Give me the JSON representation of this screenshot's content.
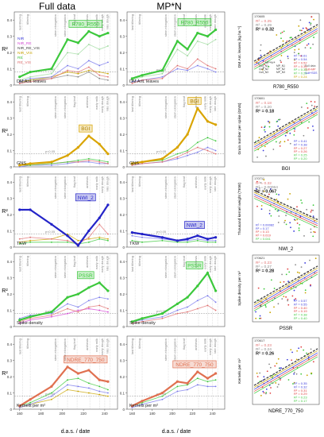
{
  "column_titles": [
    "Full data",
    "MP*N"
  ],
  "x_axis_label": "d.a.s. / date",
  "x_ticks": [
    160,
    180,
    200,
    220,
    240
  ],
  "y_axis_label": "R²",
  "stage_labels": [
    "last tillering",
    "tillering",
    "stem elongation",
    "stem elongation",
    "flag leaf",
    "anthesis",
    "early milk",
    "early dough",
    "late dough"
  ],
  "threshold_label": "p<0.05",
  "legend_left": [
    {
      "name": "NIR",
      "color": "#3a3adc"
    },
    {
      "name": "NIR_RE",
      "color": "#d54bd5"
    },
    {
      "name": "NIR_RE_VIS",
      "color": "#444444"
    },
    {
      "name": "NIR_VIS",
      "color": "#c9a400"
    },
    {
      "name": "RE",
      "color": "#3cc23c"
    },
    {
      "name": "RE_VIS",
      "color": "#e07070"
    }
  ],
  "rows": [
    {
      "trait": "DM Ant. leaves",
      "highlight": "R780_R550",
      "highlight_color": "#3cc83c",
      "scatter": {
        "date": "170605",
        "ylabel": "DM Ant. leaves [kg ha⁻¹]",
        "xlabel": "R780_R550",
        "r2_top": [
          "0.25",
          "0.29",
          "0.32"
        ],
        "r2_bottom": [
          "0.61",
          "0.54",
          "0.52",
          "0.34",
          "0.33",
          "0.29",
          "0.24"
        ],
        "legend": [
          "Cult_N1",
          "Cult_N2",
          "Cult_N3",
          "MP_N1",
          "MP_N2",
          "MP_N3"
        ],
        "legend_title": "MP*N",
        "legend_right": [
          "Full data",
          "Cult+MP",
          "Cult+SDS"
        ]
      }
    },
    {
      "trait": "GNS",
      "highlight": "BGI",
      "highlight_color": "#d9a400",
      "scatter": {
        "date": "170601",
        "ylabel": "Grain number per spike (GNS)",
        "xlabel": "BGI",
        "r2_top": [
          "0.18",
          "0.20",
          "0.18"
        ],
        "r2_bottom": [
          "0.41",
          "0.38",
          "0.27",
          "0.26",
          "0.25",
          "0.20"
        ]
      }
    },
    {
      "trait": "TKW",
      "highlight": "NWI_2",
      "highlight_color": "#2424c8",
      "scatter": {
        "date": "170711",
        "ylabel": "Thousand kernel weight (TKW)",
        "xlabel": "NWI_2",
        "r2_top": [
          "0.32",
          "0.00064",
          "0.067"
        ],
        "r2_bottom": [
          "0.00082",
          "0.17",
          "0.13",
          "0.019",
          "0.041"
        ]
      }
    },
    {
      "trait": "Spike density",
      "highlight": "PSSR",
      "highlight_color": "#3cc83c",
      "scatter": {
        "date": "170621",
        "ylabel": "Spike density per m²",
        "xlabel": "PSSR",
        "r2_top": [
          "0.23",
          "0.27",
          "0.28"
        ],
        "r2_bottom": [
          "0.57",
          "0.55",
          "0.40",
          "0.19",
          "0.38",
          "0.40"
        ]
      }
    },
    {
      "trait": "Kernels per m²",
      "highlight": "NDRE_770_750",
      "highlight_color": "#e07050",
      "scatter": {
        "date": "170617",
        "ylabel": "Kernels per m²",
        "xlabel": "NDRE_770_750",
        "r2_top": [
          "0.23",
          "0.24",
          "0.26"
        ],
        "r2_bottom": [
          "0.35",
          "0.32",
          "0.31",
          "0.29",
          "0.23",
          "0.17"
        ]
      }
    }
  ],
  "chart_data": [
    {
      "type": "line",
      "title": "Full data – DM Ant. leaves",
      "xlabel": "d.a.s. / date",
      "ylabel": "R²",
      "xlim": [
        155,
        252
      ],
      "ylim": [
        0,
        0.45
      ],
      "x": [
        160,
        170,
        190,
        205,
        215,
        225,
        235,
        243
      ],
      "series": [
        {
          "name": "R780_R550",
          "color": "#3cc83c",
          "values": [
            0.05,
            0.08,
            0.1,
            0.28,
            0.26,
            0.33,
            0.3,
            0.32
          ]
        },
        {
          "color": "#9cd99c",
          "values": [
            0.03,
            0.05,
            0.07,
            0.2,
            0.19,
            0.25,
            0.22,
            0.24
          ]
        },
        {
          "color": "#7a7aec",
          "values": [
            0.02,
            0.04,
            0.05,
            0.12,
            0.1,
            0.15,
            0.12,
            0.14
          ]
        },
        {
          "color": "#e07070",
          "values": [
            0.01,
            0.02,
            0.04,
            0.09,
            0.08,
            0.11,
            0.06,
            0.05
          ]
        },
        {
          "color": "#c9a400",
          "values": [
            0.02,
            0.03,
            0.05,
            0.08,
            0.07,
            0.09,
            0.08,
            0.07
          ]
        },
        {
          "color": "#888888",
          "values": [
            0.01,
            0.03,
            0.04,
            0.06,
            0.05,
            0.08,
            0.04,
            0.03
          ]
        }
      ]
    },
    {
      "type": "line",
      "title": "MP*N – DM Ant. leaves",
      "xlabel": "d.a.s. / date",
      "ylabel": "",
      "xlim": [
        155,
        252
      ],
      "ylim": [
        0,
        0.45
      ],
      "x": [
        160,
        170,
        190,
        205,
        215,
        225,
        235,
        243
      ],
      "series": [
        {
          "name": "R780_R550",
          "color": "#3cc83c",
          "values": [
            0.04,
            0.06,
            0.09,
            0.27,
            0.22,
            0.32,
            0.3,
            0.34
          ]
        },
        {
          "color": "#9cd99c",
          "values": [
            0.03,
            0.05,
            0.07,
            0.22,
            0.18,
            0.27,
            0.25,
            0.28
          ]
        },
        {
          "color": "#e07070",
          "values": [
            0.01,
            0.03,
            0.04,
            0.12,
            0.1,
            0.16,
            0.12,
            0.1
          ]
        },
        {
          "color": "#7a7aec",
          "values": [
            0.02,
            0.03,
            0.05,
            0.1,
            0.09,
            0.12,
            0.1,
            0.08
          ]
        }
      ]
    },
    {
      "type": "line",
      "title": "Full data – GNS",
      "xlabel": "d.a.s. / date",
      "ylabel": "R²",
      "xlim": [
        155,
        252
      ],
      "ylim": [
        0,
        0.45
      ],
      "x": [
        160,
        170,
        190,
        205,
        215,
        225,
        235,
        243
      ],
      "series": [
        {
          "name": "BGI",
          "color": "#d9a400",
          "values": [
            0.01,
            0.02,
            0.03,
            0.07,
            0.12,
            0.19,
            0.14,
            0.08
          ]
        },
        {
          "color": "#3cc83c",
          "values": [
            0.01,
            0.01,
            0.02,
            0.03,
            0.04,
            0.05,
            0.04,
            0.03
          ]
        },
        {
          "color": "#e07070",
          "values": [
            0.01,
            0.01,
            0.02,
            0.03,
            0.03,
            0.04,
            0.03,
            0.02
          ]
        },
        {
          "color": "#7a7aec",
          "values": [
            0.0,
            0.01,
            0.01,
            0.02,
            0.03,
            0.03,
            0.02,
            0.02
          ]
        }
      ]
    },
    {
      "type": "line",
      "title": "MP*N – GNS",
      "xlabel": "d.a.s. / date",
      "ylabel": "",
      "xlim": [
        155,
        252
      ],
      "ylim": [
        0,
        0.45
      ],
      "x": [
        160,
        170,
        190,
        205,
        215,
        225,
        235,
        243
      ],
      "series": [
        {
          "name": "BGI",
          "color": "#d9a400",
          "values": [
            0.02,
            0.03,
            0.05,
            0.12,
            0.2,
            0.36,
            0.28,
            0.26
          ]
        },
        {
          "color": "#3cc83c",
          "values": [
            0.02,
            0.03,
            0.04,
            0.08,
            0.1,
            0.15,
            0.18,
            0.16
          ]
        },
        {
          "color": "#e07070",
          "values": [
            0.01,
            0.02,
            0.03,
            0.06,
            0.09,
            0.12,
            0.1,
            0.08
          ]
        },
        {
          "color": "#7a7aec",
          "values": [
            0.01,
            0.02,
            0.03,
            0.05,
            0.07,
            0.09,
            0.12,
            0.1
          ]
        }
      ]
    },
    {
      "type": "line",
      "title": "Full data – TKW",
      "xlabel": "d.a.s. / date",
      "ylabel": "R²",
      "xlim": [
        155,
        252
      ],
      "ylim": [
        0,
        0.45
      ],
      "x": [
        160,
        170,
        190,
        205,
        215,
        225,
        235,
        243
      ],
      "series": [
        {
          "name": "NWI_2",
          "color": "#2424c8",
          "values": [
            0.23,
            0.23,
            0.14,
            0.07,
            0.01,
            0.1,
            0.18,
            0.26
          ]
        },
        {
          "color": "#e07070",
          "values": [
            0.05,
            0.06,
            0.05,
            0.04,
            0.02,
            0.06,
            0.14,
            0.08
          ]
        },
        {
          "color": "#c9a400",
          "values": [
            0.03,
            0.04,
            0.05,
            0.08,
            0.04,
            0.05,
            0.06,
            0.05
          ]
        },
        {
          "color": "#3cc83c",
          "values": [
            0.02,
            0.03,
            0.03,
            0.03,
            0.02,
            0.03,
            0.05,
            0.04
          ]
        }
      ]
    },
    {
      "type": "line",
      "title": "MP*N – TKW",
      "xlabel": "d.a.s. / date",
      "ylabel": "",
      "xlim": [
        155,
        252
      ],
      "ylim": [
        0,
        0.45
      ],
      "x": [
        160,
        170,
        190,
        205,
        215,
        225,
        235,
        243
      ],
      "series": [
        {
          "name": "NWI_2",
          "color": "#2424c8",
          "values": [
            0.09,
            0.08,
            0.06,
            0.04,
            0.05,
            0.07,
            0.05,
            0.06
          ]
        },
        {
          "color": "#7a7aec",
          "values": [
            0.07,
            0.06,
            0.05,
            0.04,
            0.04,
            0.05,
            0.04,
            0.04
          ]
        },
        {
          "color": "#3cc83c",
          "values": [
            0.04,
            0.03,
            0.04,
            0.03,
            0.03,
            0.04,
            0.03,
            0.03
          ]
        }
      ]
    },
    {
      "type": "line",
      "title": "Full data – Spike density",
      "xlabel": "d.a.s. / date",
      "ylabel": "R²",
      "xlim": [
        155,
        252
      ],
      "ylim": [
        0,
        0.45
      ],
      "x": [
        160,
        170,
        190,
        205,
        215,
        225,
        235,
        243
      ],
      "series": [
        {
          "name": "PSSR",
          "color": "#3cc83c",
          "values": [
            0.04,
            0.06,
            0.09,
            0.18,
            0.2,
            0.24,
            0.27,
            0.22
          ]
        },
        {
          "color": "#7a7aec",
          "values": [
            0.05,
            0.07,
            0.08,
            0.14,
            0.12,
            0.16,
            0.18,
            0.17
          ]
        },
        {
          "color": "#e07070",
          "values": [
            0.03,
            0.05,
            0.07,
            0.11,
            0.09,
            0.12,
            0.13,
            0.11
          ]
        },
        {
          "color": "#d54bd5",
          "values": [
            0.02,
            0.04,
            0.06,
            0.08,
            0.1,
            0.11,
            0.1,
            0.09
          ]
        }
      ]
    },
    {
      "type": "line",
      "title": "MP*N – Spike density",
      "xlabel": "d.a.s. / date",
      "ylabel": "",
      "xlim": [
        155,
        252
      ],
      "ylim": [
        0,
        0.45
      ],
      "x": [
        160,
        170,
        190,
        205,
        215,
        225,
        235,
        243
      ],
      "series": [
        {
          "name": "PSSR",
          "color": "#3cc83c",
          "values": [
            0.03,
            0.05,
            0.08,
            0.14,
            0.18,
            0.25,
            0.33,
            0.22
          ]
        },
        {
          "color": "#7a7aec",
          "values": [
            0.03,
            0.04,
            0.06,
            0.1,
            0.12,
            0.16,
            0.19,
            0.15
          ]
        },
        {
          "color": "#e07070",
          "values": [
            0.02,
            0.03,
            0.05,
            0.08,
            0.09,
            0.11,
            0.13,
            0.1
          ]
        }
      ]
    },
    {
      "type": "line",
      "title": "Full data – Kernels per m²",
      "xlabel": "d.a.s. / date",
      "ylabel": "R²",
      "xlim": [
        155,
        252
      ],
      "ylim": [
        0,
        0.45
      ],
      "x": [
        160,
        170,
        190,
        205,
        215,
        225,
        235,
        243
      ],
      "series": [
        {
          "name": "NDRE_770_750",
          "color": "#e07050",
          "values": [
            0.02,
            0.06,
            0.14,
            0.26,
            0.22,
            0.24,
            0.18,
            0.17
          ]
        },
        {
          "color": "#3cc83c",
          "values": [
            0.02,
            0.04,
            0.1,
            0.18,
            0.19,
            0.16,
            0.14,
            0.12
          ]
        },
        {
          "color": "#7a7aec",
          "values": [
            0.01,
            0.03,
            0.08,
            0.15,
            0.14,
            0.13,
            0.11,
            0.1
          ]
        },
        {
          "color": "#c9a400",
          "values": [
            0.01,
            0.03,
            0.06,
            0.12,
            0.11,
            0.1,
            0.09,
            0.08
          ]
        }
      ]
    },
    {
      "type": "line",
      "title": "MP*N – Kernels per m²",
      "xlabel": "d.a.s. / date",
      "ylabel": "",
      "xlim": [
        155,
        252
      ],
      "ylim": [
        0,
        0.45
      ],
      "x": [
        160,
        170,
        190,
        205,
        215,
        225,
        235,
        243
      ],
      "series": [
        {
          "name": "NDRE_770_750",
          "color": "#e07050",
          "values": [
            0.02,
            0.05,
            0.1,
            0.17,
            0.16,
            0.23,
            0.19,
            0.22
          ]
        },
        {
          "color": "#3cc83c",
          "values": [
            0.02,
            0.04,
            0.08,
            0.14,
            0.15,
            0.19,
            0.17,
            0.18
          ]
        },
        {
          "color": "#7a7aec",
          "values": [
            0.01,
            0.03,
            0.06,
            0.11,
            0.12,
            0.15,
            0.14,
            0.14
          ]
        }
      ]
    }
  ]
}
